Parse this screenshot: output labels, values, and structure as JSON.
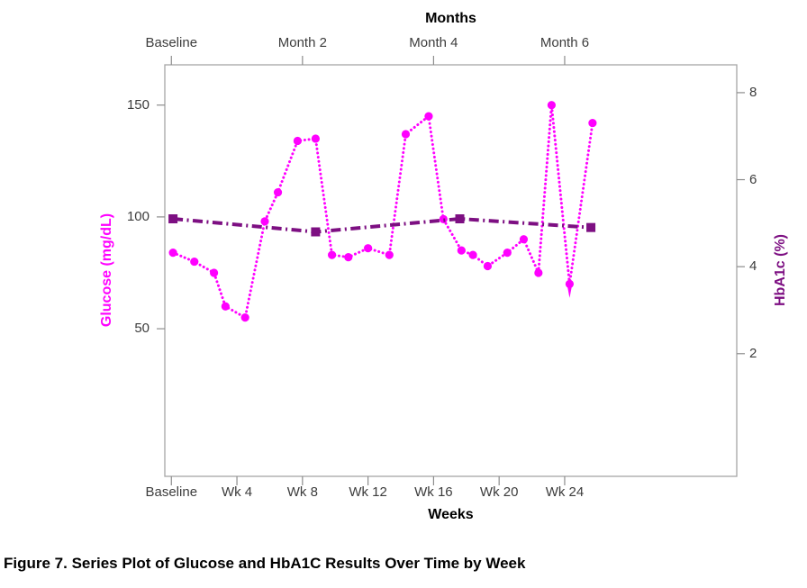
{
  "figure": {
    "caption": "Figure 7. Series Plot of Glucose and HbA1C Results Over Time by Week"
  },
  "chart_data": {
    "type": "line",
    "title": "Series plot of Glucose and HbA1c over time, dual y-axes",
    "grid": false,
    "legend": "none",
    "top_axis": {
      "title": "Months",
      "ticks": [
        {
          "x": 0,
          "label": "Baseline"
        },
        {
          "x": 8,
          "label": "Month 2"
        },
        {
          "x": 16,
          "label": "Month 4"
        },
        {
          "x": 24,
          "label": "Month 6"
        }
      ]
    },
    "bottom_axis": {
      "title": "Weeks",
      "xlim": [
        -0.4,
        34.5
      ],
      "ticks": [
        {
          "x": 0,
          "label": "Baseline"
        },
        {
          "x": 4,
          "label": "Wk 4"
        },
        {
          "x": 8,
          "label": "Wk 8"
        },
        {
          "x": 12,
          "label": "Wk 12"
        },
        {
          "x": 16,
          "label": "Wk 16"
        },
        {
          "x": 20,
          "label": "Wk 20"
        },
        {
          "x": 24,
          "label": "Wk 24"
        }
      ]
    },
    "left_axis": {
      "title": "Glucose (mg/dL)",
      "color": "#FF00FF",
      "ticks": [
        150,
        100,
        50
      ],
      "ylim": [
        -16,
        168
      ]
    },
    "right_axis": {
      "title": "HbA1c (%)",
      "color": "#7D0F82",
      "ticks": [
        8,
        6,
        4,
        2
      ],
      "ylim": [
        -0.82,
        8.64
      ]
    },
    "series": [
      {
        "name": "Glucose (mg/dL)",
        "axis": "left",
        "color": "#FF00FF",
        "marker": "circle",
        "line_style": "dotted",
        "points": [
          [
            0.1,
            84
          ],
          [
            1.4,
            80
          ],
          [
            2.6,
            75
          ],
          [
            3.3,
            60
          ],
          [
            4.5,
            55
          ],
          [
            5.7,
            98
          ],
          [
            6.5,
            111
          ],
          [
            7.7,
            134
          ],
          [
            8.8,
            135
          ],
          [
            9.8,
            83
          ],
          [
            10.8,
            82
          ],
          [
            12.0,
            86
          ],
          [
            13.3,
            83
          ],
          [
            14.3,
            137
          ],
          [
            15.7,
            145
          ],
          [
            16.6,
            99
          ],
          [
            17.7,
            85
          ],
          [
            18.4,
            83
          ],
          [
            19.3,
            78
          ],
          [
            20.5,
            84
          ],
          [
            21.5,
            90
          ],
          [
            22.4,
            75
          ],
          [
            23.2,
            150
          ],
          [
            24.3,
            70
          ],
          [
            25.7,
            142
          ]
        ]
      },
      {
        "name": "HbA1c (%)",
        "axis": "right",
        "color": "#7D0F82",
        "marker": "square",
        "line_style": "dash-dot",
        "points": [
          [
            0.1,
            5.1
          ],
          [
            8.8,
            4.8
          ],
          [
            17.6,
            5.1
          ],
          [
            25.6,
            4.9
          ]
        ]
      }
    ],
    "annotations": [
      {
        "type": "down-arrow",
        "axis": "left",
        "x": 24.3,
        "y": 70,
        "color": "#FF00FF"
      }
    ]
  },
  "style": {
    "background": "#FFFFFF",
    "frame_color": "#A6A6A6",
    "tick_color": "#8C8C8C",
    "tick_label_color": "#3C3C3C",
    "title_color": "#000000"
  }
}
